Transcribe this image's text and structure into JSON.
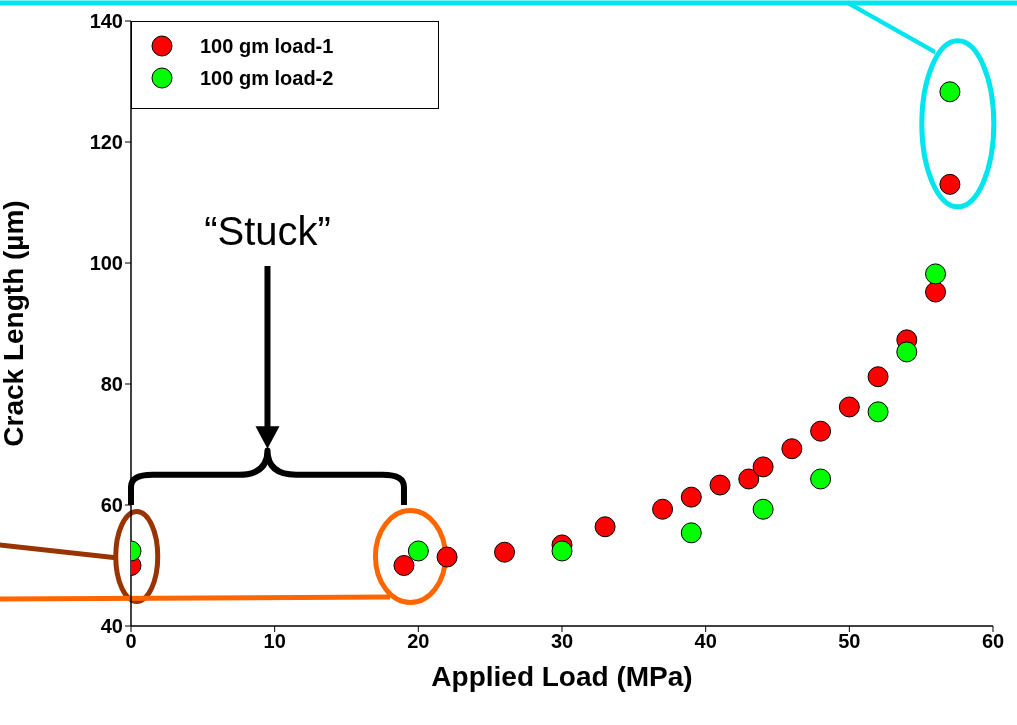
{
  "chart_data": {
    "type": "scatter",
    "xlabel": "Applied Load (MPa)",
    "ylabel": "Crack Length (µm)",
    "xlim": [
      0,
      60
    ],
    "xticks": [
      0,
      10,
      20,
      30,
      40,
      50,
      60
    ],
    "ylim": [
      40,
      140
    ],
    "yticks": [
      40,
      60,
      80,
      100,
      120,
      140
    ],
    "grid": false,
    "legend": "top left",
    "marker": "circle",
    "annotations": [
      "“Stuck”"
    ],
    "series": [
      {
        "name": "100 gm load-1",
        "color": "#ff0000",
        "x": [
          0,
          19,
          22,
          26,
          30,
          33,
          37,
          39,
          41,
          43,
          44,
          46,
          48,
          50,
          52,
          54,
          56,
          57
        ],
        "values": [
          50,
          50,
          51.4,
          52.2,
          53.4,
          56.4,
          59.3,
          61.3,
          63.3,
          64.3,
          66.3,
          69.3,
          72.2,
          76.2,
          81.2,
          87.3,
          95.2,
          113
        ]
      },
      {
        "name": "100 gm load-2",
        "color": "#00ff00",
        "x": [
          0,
          20,
          30,
          39,
          44,
          48,
          52,
          54,
          56,
          57
        ],
        "values": [
          52.4,
          52.4,
          52.4,
          55.4,
          59.3,
          64.3,
          75.4,
          85.3,
          98.2,
          128.3
        ]
      }
    ]
  }
}
